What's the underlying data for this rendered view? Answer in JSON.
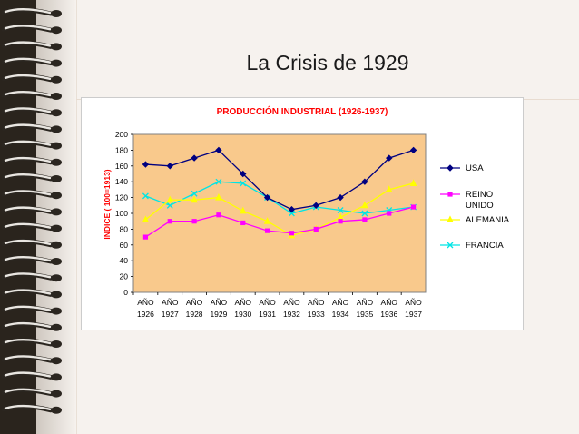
{
  "slide": {
    "title": "La Crisis de 1929"
  },
  "chart_data": {
    "type": "line",
    "title": "PRODUCCIÓN INDUSTRIAL (1926-1937)",
    "xlabel": "",
    "ylabel": "INDICE ( 100=1913)",
    "ylim": [
      0,
      200
    ],
    "yticks": [
      0,
      20,
      40,
      60,
      80,
      100,
      120,
      140,
      160,
      180,
      200
    ],
    "grid": false,
    "legend_position": "right",
    "categories": [
      [
        "AÑO",
        "1926"
      ],
      [
        "AÑO",
        "1927"
      ],
      [
        "AÑO",
        "1928"
      ],
      [
        "AÑO",
        "1929"
      ],
      [
        "AÑO",
        "1930"
      ],
      [
        "AÑO",
        "1931"
      ],
      [
        "AÑO",
        "1932"
      ],
      [
        "AÑO",
        "1933"
      ],
      [
        "AÑO",
        "1934"
      ],
      [
        "AÑO",
        "1935"
      ],
      [
        "AÑO",
        "1936"
      ],
      [
        "AÑO",
        "1937"
      ]
    ],
    "series": [
      {
        "name": "USA",
        "legend_lines": [
          "USA"
        ],
        "color": "#000080",
        "marker": "diamond",
        "values": [
          162,
          160,
          170,
          180,
          150,
          120,
          105,
          110,
          120,
          140,
          170,
          180
        ]
      },
      {
        "name": "REINO UNIDO",
        "legend_lines": [
          "REINO",
          "UNIDO"
        ],
        "color": "#ff00ff",
        "marker": "square",
        "values": [
          70,
          90,
          90,
          98,
          88,
          78,
          75,
          80,
          90,
          92,
          100,
          108
        ]
      },
      {
        "name": "ALEMANIA",
        "legend_lines": [
          "ALEMANIA"
        ],
        "color": "#ffff00",
        "marker": "triangle",
        "values": [
          92,
          117,
          117,
          120,
          103,
          90,
          72,
          80,
          95,
          110,
          130,
          138
        ]
      },
      {
        "name": "FRANCIA",
        "legend_lines": [
          "FRANCIA"
        ],
        "color": "#00e5e5",
        "marker": "x",
        "values": [
          122,
          110,
          125,
          140,
          138,
          120,
          100,
          108,
          104,
          100,
          104,
          108
        ]
      }
    ],
    "colors": {
      "plot_background": "#f9c98c",
      "title": "#ff0000",
      "ylabel": "#ff0000"
    }
  }
}
